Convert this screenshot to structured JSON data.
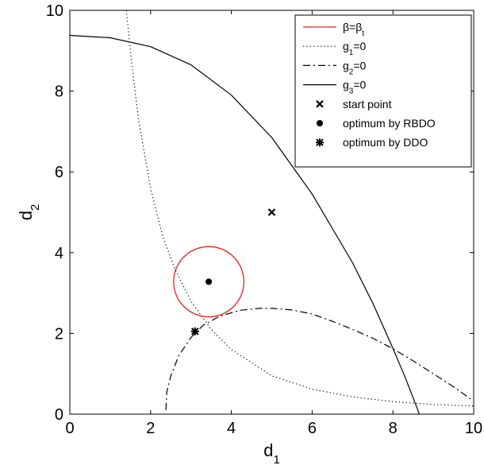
{
  "chart_data": {
    "type": "line",
    "title": "",
    "xlabel": {
      "main": "d",
      "sub": "1"
    },
    "ylabel": {
      "main": "d",
      "sub": "2"
    },
    "xlim": [
      0,
      10
    ],
    "ylim": [
      0,
      10
    ],
    "xticks": [
      "0",
      "2",
      "4",
      "6",
      "8",
      "10"
    ],
    "yticks": [
      "0",
      "2",
      "4",
      "6",
      "8",
      "10"
    ],
    "grid": false,
    "legend_position": "top-right",
    "colors": {
      "circle": "#e8201c",
      "ink": "#000000"
    },
    "series": [
      {
        "name": "β=β_t",
        "legend": {
          "main": "β=β",
          "sub": "t"
        },
        "style": "solid-red",
        "center": [
          3.44,
          3.28
        ],
        "radius": 0.87
      },
      {
        "name": "g_1=0",
        "legend": {
          "main": "g",
          "sub": "1",
          "tail": "=0"
        },
        "style": "dotted",
        "x": [
          1.4,
          1.5,
          1.7,
          2.0,
          2.3,
          2.6,
          3.0,
          3.5,
          4.0,
          5.0,
          6.0,
          7.0,
          8.0,
          9.0,
          10.0
        ],
        "y": [
          10.0,
          9.0,
          7.3,
          5.6,
          4.4,
          3.6,
          2.8,
          2.1,
          1.6,
          0.95,
          0.62,
          0.43,
          0.31,
          0.24,
          0.2
        ]
      },
      {
        "name": "g_2=0",
        "legend": {
          "main": "g",
          "sub": "2",
          "tail": "=0"
        },
        "style": "dashdot",
        "x": [
          2.38,
          2.4,
          2.5,
          2.7,
          3.0,
          3.3,
          3.7,
          4.2,
          4.7,
          5.0,
          5.5,
          6.0,
          6.5,
          7.0,
          7.5,
          8.0,
          8.5,
          9.0,
          9.5,
          10.0
        ],
        "y": [
          0.1,
          0.55,
          0.95,
          1.45,
          1.9,
          2.2,
          2.42,
          2.57,
          2.62,
          2.62,
          2.58,
          2.48,
          2.3,
          2.1,
          1.88,
          1.62,
          1.32,
          1.0,
          0.68,
          0.32
        ]
      },
      {
        "name": "g_3=0",
        "legend": {
          "main": "g",
          "sub": "3",
          "tail": "=0"
        },
        "style": "solid",
        "x": [
          0,
          1,
          2,
          3,
          4,
          5,
          6,
          7,
          7.5,
          8.0,
          8.3,
          8.6,
          8.65
        ],
        "y": [
          9.38,
          9.32,
          9.1,
          8.65,
          7.9,
          6.85,
          5.45,
          3.75,
          2.75,
          1.63,
          0.92,
          0.15,
          0.0
        ]
      },
      {
        "name": "start point",
        "legend": {
          "main": "start point"
        },
        "style": "marker-x",
        "points": [
          [
            5.0,
            5.0
          ]
        ]
      },
      {
        "name": "optimum by RBDO",
        "legend": {
          "main": "optimum by RBDO"
        },
        "style": "marker-dot",
        "points": [
          [
            3.44,
            3.28
          ]
        ]
      },
      {
        "name": "optimum by DDO",
        "legend": {
          "main": "optimum by DDO"
        },
        "style": "marker-star",
        "points": [
          [
            3.1,
            2.05
          ]
        ]
      }
    ]
  }
}
